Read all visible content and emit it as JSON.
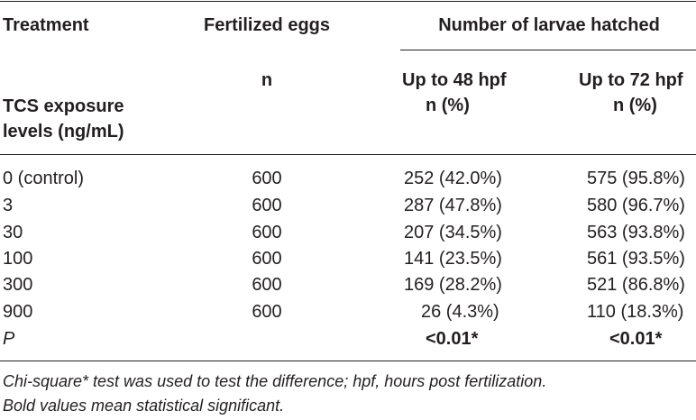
{
  "header": {
    "treatment": "Treatment",
    "fertilized_eggs": "Fertilized eggs",
    "larvae_hatched": "Number of larvae hatched",
    "n": "n",
    "up_to_48": "Up to 48 hpf",
    "up_to_72": "Up to 72 hpf",
    "n_pct": "n (%)",
    "exposure_line1": "TCS exposure",
    "exposure_line2": "levels (ng/mL)"
  },
  "rows": [
    {
      "level": "0 (control)",
      "eggs": "600",
      "h48": "252 (42.0%)",
      "h72": "575 (95.8%)"
    },
    {
      "level": "3",
      "eggs": "600",
      "h48": "287 (47.8%)",
      "h72": "580 (96.7%)"
    },
    {
      "level": "30",
      "eggs": "600",
      "h48": "207 (34.5%)",
      "h72": "563 (93.8%)"
    },
    {
      "level": "100",
      "eggs": "600",
      "h48": "141 (23.5%)",
      "h72": "561 (93.5%)"
    },
    {
      "level": "300",
      "eggs": "600",
      "h48": "169 (28.2%)",
      "h72": "521 (86.8%)"
    },
    {
      "level": "900",
      "eggs": "600",
      "h48": "26 (4.3%)",
      "h72": "110 (18.3%)"
    }
  ],
  "p_row": {
    "label": "P",
    "h48": "<0.01*",
    "h72": "<0.01*"
  },
  "footnotes": [
    "Chi-square* test was used to test the difference; hpf, hours post fertilization.",
    "Bold values mean statistical significant."
  ]
}
